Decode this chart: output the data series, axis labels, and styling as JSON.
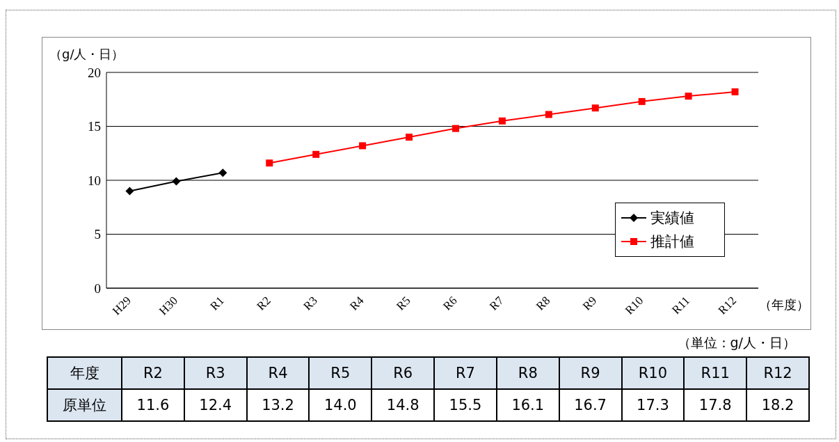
{
  "chart_data": [
    {
      "type": "line",
      "categories": [
        "H29",
        "H30",
        "R1",
        "R2",
        "R3",
        "R4",
        "R5",
        "R6",
        "R7",
        "R8",
        "R9",
        "R10",
        "R11",
        "R12"
      ],
      "series": [
        {
          "name": "実績値",
          "color": "#000000",
          "marker": "diamond",
          "values": [
            9.0,
            9.9,
            10.7,
            null,
            null,
            null,
            null,
            null,
            null,
            null,
            null,
            null,
            null,
            null
          ]
        },
        {
          "name": "推計値",
          "color": "#ff0000",
          "marker": "square",
          "values": [
            null,
            null,
            null,
            11.6,
            12.4,
            13.2,
            14.0,
            14.8,
            15.5,
            16.1,
            16.7,
            17.3,
            17.8,
            18.2
          ]
        }
      ],
      "ylabel": "（g/人・日）",
      "xlabel": "（年度）",
      "ylim": [
        0,
        20
      ],
      "yticks": [
        0,
        5,
        10,
        15,
        20
      ],
      "grid": "y",
      "legend": "right"
    },
    {
      "type": "other",
      "categories": [
        "R2",
        "R3",
        "R4",
        "R5",
        "R6",
        "R7",
        "R8",
        "R9",
        "R10",
        "R11",
        "R12"
      ],
      "values": [
        11.6,
        12.4,
        13.2,
        14.0,
        14.8,
        15.5,
        16.1,
        16.7,
        17.3,
        17.8,
        18.2
      ],
      "value_labels": [
        "11.6",
        "12.4",
        "13.2",
        "14.0",
        "14.8",
        "15.5",
        "16.1",
        "16.7",
        "17.3",
        "17.8",
        "18.2"
      ],
      "annotations": [
        "（単位：g/人・日）",
        "年度",
        "原単位"
      ]
    }
  ]
}
